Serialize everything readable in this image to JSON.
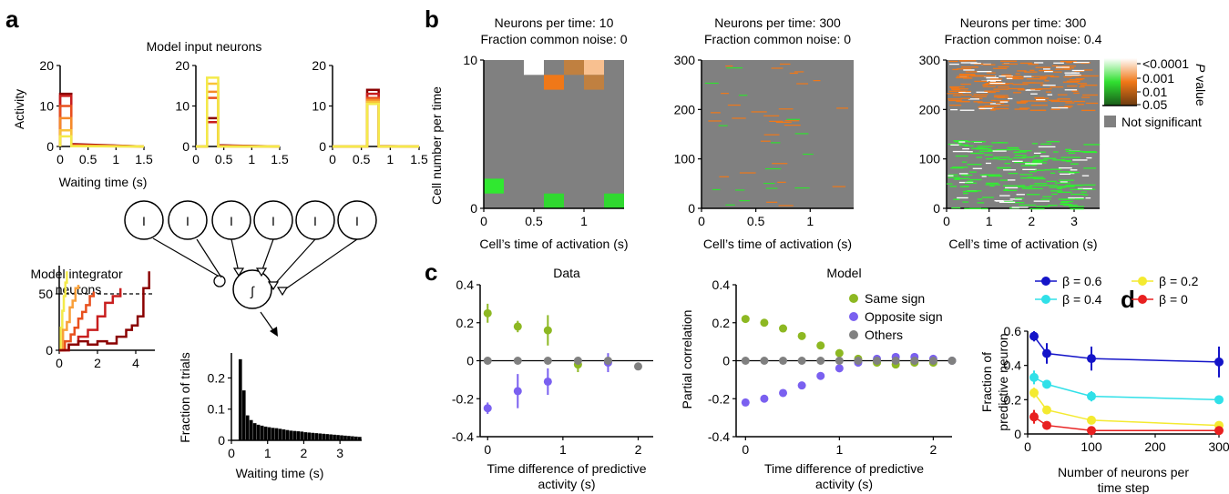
{
  "panel_labels": {
    "a": "a",
    "b": "b",
    "c": "c",
    "d": "d"
  },
  "chart_data": [
    {
      "id": "a_input",
      "type": "line",
      "title": "Model input neurons",
      "ylabel": "Activity",
      "xlabel": "Waiting time (s)",
      "xlim": [
        0,
        1.5
      ],
      "ylim": [
        0,
        20
      ],
      "xticks": [
        "0",
        "0.5",
        "1",
        "1.5"
      ],
      "yticks": [
        "0",
        "10",
        "20"
      ],
      "colors": [
        "#8b0000",
        "#c81e1e",
        "#e8501e",
        "#f58a2a",
        "#f9c23a",
        "#f4ea4a"
      ],
      "panels": [
        {
          "onset": 0,
          "offset": 0.2,
          "amplitudes": [
            13,
            12.5,
            10,
            7,
            4,
            2.5
          ],
          "tail": [
            0.6,
            0.45,
            0.3,
            0.2,
            0.1,
            0.05
          ]
        },
        {
          "onset": 0.2,
          "offset": 0.4,
          "amplitudes": [
            7,
            6,
            12,
            13.5,
            15.5,
            17
          ],
          "tail": [
            0.3,
            0.2,
            0.1,
            0.05,
            0,
            0
          ]
        },
        {
          "onset": 0.6,
          "offset": 0.8,
          "amplitudes": [
            14,
            13,
            12,
            11.5,
            11,
            10.5
          ],
          "tail": [
            0.1,
            0.05,
            0,
            0,
            0,
            0
          ]
        }
      ]
    },
    {
      "id": "a_integrator",
      "type": "line",
      "title": "Model integrator neurons",
      "xlim": [
        0,
        5
      ],
      "ylim": [
        0,
        75
      ],
      "threshold": 50,
      "xticks": [
        "0",
        "2",
        "4"
      ],
      "yticks": [
        "0",
        "50"
      ],
      "series": [
        {
          "color": "#f4ea4a",
          "x": [
            0,
            0.08,
            0.16,
            0.24,
            0.32,
            0.4
          ],
          "y": [
            0,
            20,
            35,
            48,
            60,
            70
          ]
        },
        {
          "color": "#f9a03a",
          "x": [
            0,
            0.2,
            0.4,
            0.55,
            0.7,
            0.85,
            1.0
          ],
          "y": [
            0,
            18,
            25,
            38,
            44,
            55,
            58
          ]
        },
        {
          "color": "#e8501e",
          "x": [
            0,
            0.3,
            0.6,
            0.8,
            1.0,
            1.2,
            1.4,
            1.6,
            1.8
          ],
          "y": [
            0,
            8,
            14,
            20,
            28,
            34,
            40,
            48,
            52
          ]
        },
        {
          "color": "#c81e1e",
          "x": [
            0,
            0.5,
            1.0,
            1.5,
            2.0,
            2.4,
            2.8,
            3.2
          ],
          "y": [
            0,
            5,
            12,
            18,
            30,
            42,
            48,
            55
          ]
        },
        {
          "color": "#8b0000",
          "x": [
            0,
            0.5,
            1.0,
            1.5,
            2.0,
            2.5,
            3.0,
            3.5,
            3.8,
            4.1,
            4.4,
            4.7
          ],
          "y": [
            0,
            5,
            8,
            5,
            8,
            6,
            12,
            18,
            22,
            30,
            55,
            70
          ]
        }
      ]
    },
    {
      "id": "a_network",
      "type": "diagram",
      "input_label": "I",
      "n_inputs": 6,
      "integrator_label": "∫"
    },
    {
      "id": "a_hist",
      "type": "bar",
      "xlabel": "Waiting time (s)",
      "ylabel": "Fraction of trials",
      "xlim": [
        0,
        3.6
      ],
      "ylim": [
        0,
        0.28
      ],
      "xticks": [
        "0",
        "1",
        "2",
        "3"
      ],
      "yticks": [
        "0",
        "0.1",
        "0.2"
      ],
      "bin_width": 0.1,
      "values": [
        0,
        0,
        0.26,
        0.16,
        0.08,
        0.065,
        0.055,
        0.05,
        0.047,
        0.044,
        0.042,
        0.04,
        0.039,
        0.037,
        0.035,
        0.033,
        0.031,
        0.03,
        0.029,
        0.028,
        0.026,
        0.025,
        0.024,
        0.023,
        0.022,
        0.021,
        0.02,
        0.019,
        0.018,
        0.017,
        0.016,
        0.015,
        0.014,
        0.013,
        0.012,
        0.011
      ]
    },
    {
      "id": "b1",
      "type": "heatmap",
      "title": "Neurons per time: 10",
      "subtitle": "Fraction common noise: 0",
      "ylabel": "Cell number per time",
      "xlabel": "Cell’s time of activation (s)",
      "xlim": [
        0,
        1.4
      ],
      "ylim": [
        0,
        10
      ],
      "xticks": [
        "0",
        "0.5",
        "1"
      ],
      "yticks": [
        "0",
        "10"
      ],
      "cells": [
        {
          "x": 0.4,
          "y": 10,
          "w": 0.2,
          "h": 1,
          "color": "#ffffff"
        },
        {
          "x": 0.8,
          "y": 10,
          "w": 0.2,
          "h": 1,
          "color": "#c08040"
        },
        {
          "x": 1.0,
          "y": 10,
          "w": 0.2,
          "h": 1,
          "color": "#f8c090"
        },
        {
          "x": 0.6,
          "y": 9,
          "w": 0.2,
          "h": 1,
          "color": "#f07818"
        },
        {
          "x": 1.0,
          "y": 9,
          "w": 0.2,
          "h": 1,
          "color": "#c08040"
        },
        {
          "x": 0.0,
          "y": 2,
          "w": 0.2,
          "h": 1,
          "color": "#30e830"
        },
        {
          "x": 0.6,
          "y": 1,
          "w": 0.2,
          "h": 1,
          "color": "#30d830"
        },
        {
          "x": 1.2,
          "y": 1,
          "w": 0.2,
          "h": 1,
          "color": "#30d830"
        }
      ]
    },
    {
      "id": "b2",
      "type": "heatmap",
      "title": "Neurons per time: 300",
      "subtitle": "Fraction common noise: 0",
      "xlabel": "Cell’s time of activation (s)",
      "xlim": [
        0,
        1.4
      ],
      "ylim": [
        0,
        300
      ],
      "xticks": [
        "0",
        "0.5",
        "1"
      ],
      "yticks": [
        "0",
        "100",
        "200",
        "300"
      ]
    },
    {
      "id": "b3",
      "type": "heatmap",
      "title": "Neurons per time: 300",
      "subtitle": "Fraction common noise: 0.4",
      "xlabel": "Cell’s time of activation (s)",
      "xlim": [
        0,
        3.6
      ],
      "ylim": [
        0,
        300
      ],
      "xticks": [
        "0",
        "1",
        "2",
        "3"
      ],
      "yticks": [
        "0",
        "100",
        "200",
        "300"
      ]
    },
    {
      "id": "b_colorbar",
      "type": "legend",
      "ticks": [
        "<0.0001",
        "0.001",
        "0.01",
        "0.05"
      ],
      "axis_label_italic": "P",
      "axis_label": " value",
      "not_significant": "Not significant"
    },
    {
      "id": "c_data",
      "type": "scatter",
      "title": "Data",
      "ylabel": "Partial correlation",
      "xlabel": "Time difference of predictive activity (s)",
      "xlim": [
        -0.1,
        2.2
      ],
      "ylim": [
        -0.4,
        0.4
      ],
      "xticks": [
        "0",
        "1",
        "2"
      ],
      "yticks": [
        "-0.4",
        "-0.2",
        "0",
        "0.2",
        "0.4"
      ],
      "series": [
        {
          "name": "Same sign",
          "color": "#8db822",
          "x": [
            0,
            0.4,
            0.8,
            1.2
          ],
          "y": [
            0.25,
            0.18,
            0.16,
            -0.02
          ],
          "err": [
            0.05,
            0.03,
            0.08,
            0.04
          ]
        },
        {
          "name": "Opposite sign",
          "color": "#7a60f0",
          "x": [
            0,
            0.4,
            0.8,
            1.6
          ],
          "y": [
            -0.25,
            -0.16,
            -0.11,
            -0.01
          ],
          "err": [
            0.03,
            0.09,
            0.07,
            0.05
          ]
        },
        {
          "name": "Others",
          "color": "#808080",
          "x": [
            0,
            0.4,
            0.8,
            1.2,
            1.6,
            2.0
          ],
          "y": [
            0,
            0,
            0,
            0,
            0,
            -0.03
          ],
          "err": [
            0,
            0,
            0,
            0,
            0,
            0.02
          ]
        }
      ]
    },
    {
      "id": "c_model",
      "type": "scatter",
      "title": "Model",
      "ylabel": "Partial correlation",
      "xlabel": "Time difference of predictive activity (s)",
      "xlim": [
        -0.1,
        2.2
      ],
      "ylim": [
        -0.4,
        0.4
      ],
      "xticks": [
        "0",
        "1",
        "2"
      ],
      "yticks": [
        "-0.4",
        "-0.2",
        "0",
        "0.2",
        "0.4"
      ],
      "legend": [
        "Same sign",
        "Opposite sign",
        "Others"
      ],
      "series": [
        {
          "name": "Same sign",
          "color": "#8db822",
          "x": [
            0,
            0.2,
            0.4,
            0.6,
            0.8,
            1.0,
            1.2,
            1.4,
            1.6,
            1.8,
            2.0,
            2.2
          ],
          "y": [
            0.22,
            0.2,
            0.17,
            0.13,
            0.08,
            0.04,
            0.01,
            -0.01,
            -0.02,
            -0.01,
            -0.01,
            0
          ]
        },
        {
          "name": "Opposite sign",
          "color": "#7a60f0",
          "x": [
            0,
            0.2,
            0.4,
            0.6,
            0.8,
            1.0,
            1.2,
            1.4,
            1.6,
            1.8,
            2.0,
            2.2
          ],
          "y": [
            -0.22,
            -0.2,
            -0.17,
            -0.13,
            -0.08,
            -0.04,
            -0.01,
            0.01,
            0.02,
            0.02,
            0.01,
            0
          ]
        },
        {
          "name": "Others",
          "color": "#808080",
          "x": [
            0,
            0.2,
            0.4,
            0.6,
            0.8,
            1.0,
            1.2,
            1.4,
            1.6,
            1.8,
            2.0,
            2.2
          ],
          "y": [
            0,
            0,
            0,
            0,
            0,
            0,
            0,
            0,
            0,
            0,
            0,
            0
          ]
        }
      ]
    },
    {
      "id": "d",
      "type": "line",
      "ylabel_lines": [
        "Fraction of",
        "predictive neuron"
      ],
      "xlabel_lines": [
        "Number of neurons per",
        "time step"
      ],
      "xlim": [
        0,
        300
      ],
      "ylim": [
        0,
        0.6
      ],
      "xticks": [
        "0",
        "100",
        "200",
        "300"
      ],
      "yticks": [
        "0",
        "0.2",
        "0.4",
        "0.6"
      ],
      "series": [
        {
          "name": "β = 0.6",
          "color": "#1414c8",
          "x": [
            10,
            30,
            100,
            300
          ],
          "y": [
            0.57,
            0.47,
            0.44,
            0.42
          ],
          "err": [
            0.03,
            0.06,
            0.07,
            0.09
          ]
        },
        {
          "name": "β = 0.4",
          "color": "#30e0e8",
          "x": [
            10,
            30,
            100,
            300
          ],
          "y": [
            0.33,
            0.29,
            0.22,
            0.2
          ],
          "err": [
            0.04,
            0.02,
            0.03,
            0.02
          ]
        },
        {
          "name": "β = 0.2",
          "color": "#f4ea30",
          "x": [
            10,
            30,
            100,
            300
          ],
          "y": [
            0.24,
            0.14,
            0.08,
            0.05
          ],
          "err": [
            0.03,
            0.02,
            0.01,
            0.01
          ]
        },
        {
          "name": "β = 0",
          "color": "#e82020",
          "x": [
            10,
            30,
            100,
            300
          ],
          "y": [
            0.1,
            0.05,
            0.02,
            0.02
          ],
          "err": [
            0.04,
            0.01,
            0.005,
            0.005
          ]
        }
      ]
    }
  ]
}
